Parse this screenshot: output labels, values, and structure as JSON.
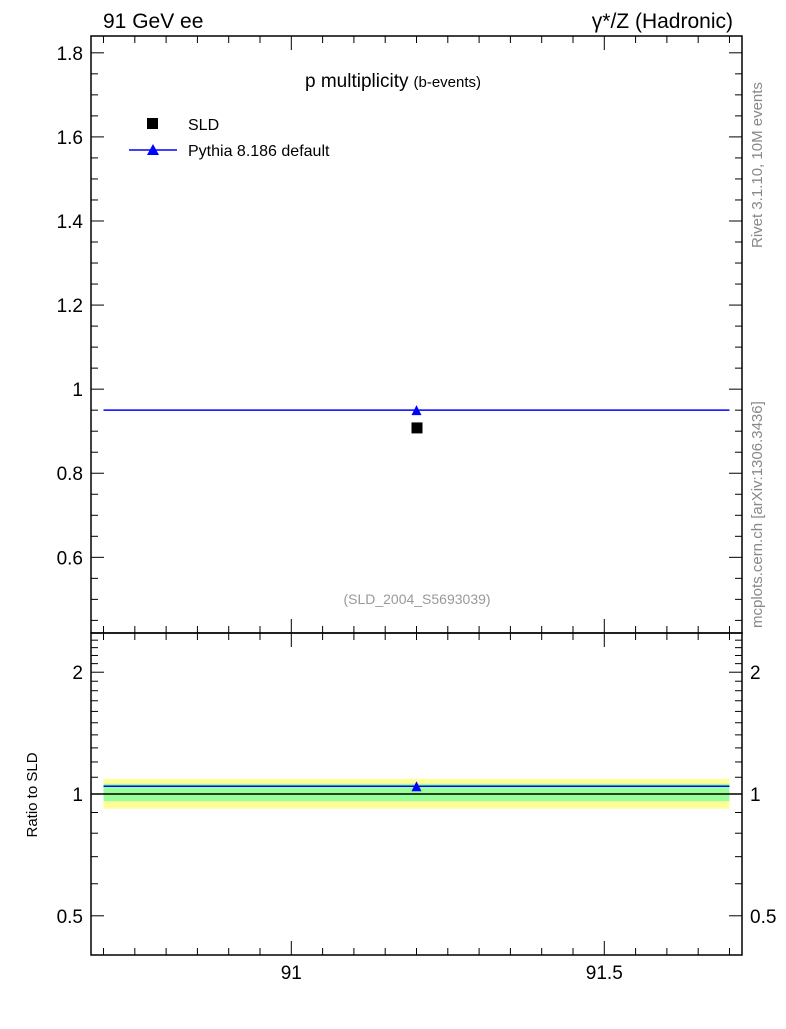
{
  "header": {
    "left": "91 GeV ee",
    "right": "γ*/Z (Hadronic)"
  },
  "side_labels": {
    "rivet": "Rivet 3.1.10,  10M events",
    "mcplots": "mcplots.cern.ch [arXiv:1306.3436]"
  },
  "chart_data": {
    "type": "scatter",
    "title": "p multiplicity",
    "subtitle": "(b-events)",
    "watermark": "(SLD_2004_S5693039)",
    "xlim": [
      90.68,
      91.72
    ],
    "ylim": [
      0.42,
      1.84
    ],
    "xticks": [
      {
        "v": 91,
        "label": "91"
      },
      {
        "v": 91.5,
        "label": "91.5"
      }
    ],
    "yticks": [
      {
        "v": 0.6,
        "label": "0.6"
      },
      {
        "v": 0.8,
        "label": "0.8"
      },
      {
        "v": 1,
        "label": "1"
      },
      {
        "v": 1.2,
        "label": "1.2"
      },
      {
        "v": 1.4,
        "label": "1.4"
      },
      {
        "v": 1.6,
        "label": "1.6"
      },
      {
        "v": 1.8,
        "label": "1.8"
      }
    ],
    "legend_position": "top-left",
    "series": [
      {
        "name": "SLD",
        "marker": "square",
        "color": "#000000",
        "x": [
          91.2
        ],
        "y": [
          0.909
        ]
      },
      {
        "name": "Pythia 8.186 default",
        "marker": "triangle",
        "color": "#0000ff",
        "x": [
          91.2
        ],
        "y": [
          0.95
        ],
        "xrange": [
          90.7,
          91.7
        ]
      }
    ],
    "ratio": {
      "ylabel": "Ratio to SLD",
      "scale": "log",
      "ylim": [
        0.4,
        2.5
      ],
      "yticks": [
        {
          "v": 0.5,
          "label": "0.5"
        },
        {
          "v": 1,
          "label": "1"
        },
        {
          "v": 2,
          "label": "2"
        }
      ],
      "band_1sigma": [
        0.96,
        1.06
      ],
      "band_2sigma": [
        0.92,
        1.09
      ],
      "band_colors": {
        "inner": "#99ff99",
        "outer": "#ffff99"
      },
      "pythia_ratio": 1.045
    }
  }
}
